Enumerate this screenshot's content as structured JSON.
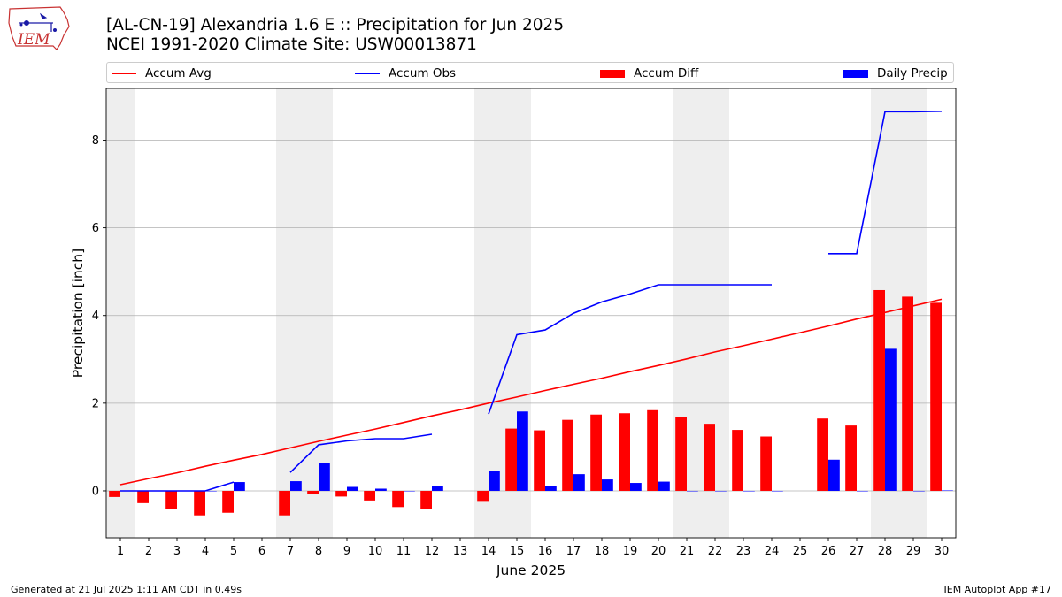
{
  "header": {
    "logo_text": "IEM",
    "title_line1": "[AL-CN-19] Alexandria 1.6 E :: Precipitation for Jun 2025",
    "title_line2": "NCEI 1991-2020 Climate Site: USW00013871"
  },
  "footer": {
    "left": "Generated at 21 Jul 2025 1:11 AM CDT in 0.49s",
    "right": "IEM Autoplot App #17"
  },
  "chart_data": {
    "type": "bar",
    "xlabel": "June 2025",
    "ylabel": "Precipitation [inch]",
    "ylim": [
      -1.07,
      9.18
    ],
    "yticks": [
      0,
      2,
      4,
      6,
      8
    ],
    "grid": "horizontal",
    "legend_position": "top",
    "weekend_shading": [
      [
        1,
        1
      ],
      [
        7,
        8
      ],
      [
        14,
        15
      ],
      [
        21,
        22
      ],
      [
        28,
        29
      ]
    ],
    "categories": [
      1,
      2,
      3,
      4,
      5,
      6,
      7,
      8,
      9,
      10,
      11,
      12,
      13,
      14,
      15,
      16,
      17,
      18,
      19,
      20,
      21,
      22,
      23,
      24,
      25,
      26,
      27,
      28,
      29,
      30
    ],
    "series": [
      {
        "name": "Accum Avg",
        "kind": "line",
        "color": "#ff0000",
        "values": [
          0.14,
          0.28,
          0.41,
          0.56,
          0.7,
          0.83,
          0.98,
          1.13,
          1.27,
          1.41,
          1.56,
          1.71,
          1.85,
          2.0,
          2.14,
          2.29,
          2.43,
          2.57,
          2.72,
          2.86,
          3.01,
          3.17,
          3.31,
          3.46,
          3.61,
          3.76,
          3.92,
          4.07,
          4.22,
          4.37
        ]
      },
      {
        "name": "Accum Obs",
        "kind": "line",
        "color": "#0000ff",
        "values": [
          0.0,
          0.0,
          0.0,
          0.0,
          0.2,
          null,
          0.42,
          1.05,
          1.14,
          1.19,
          1.19,
          1.29,
          null,
          1.75,
          3.56,
          3.67,
          4.05,
          4.31,
          4.49,
          4.7,
          4.7,
          4.7,
          4.7,
          4.7,
          null,
          5.41,
          5.41,
          8.65,
          8.65,
          8.66
        ]
      },
      {
        "name": "Accum Diff",
        "kind": "bar",
        "color": "#ff0000",
        "values": [
          -0.14,
          -0.28,
          -0.41,
          -0.56,
          -0.5,
          null,
          -0.56,
          -0.08,
          -0.13,
          -0.22,
          -0.37,
          -0.42,
          null,
          -0.25,
          1.42,
          1.38,
          1.62,
          1.74,
          1.77,
          1.84,
          1.69,
          1.53,
          1.39,
          1.24,
          null,
          1.65,
          1.49,
          4.58,
          4.43,
          4.29
        ]
      },
      {
        "name": "Daily Precip",
        "kind": "bar",
        "color": "#0000ff",
        "values": [
          0.0,
          0.0,
          0.0,
          0.0,
          0.2,
          null,
          0.22,
          0.63,
          0.09,
          0.05,
          0.0,
          0.1,
          null,
          0.46,
          1.81,
          0.11,
          0.38,
          0.26,
          0.18,
          0.21,
          0.0,
          0.0,
          0.0,
          0.0,
          null,
          0.71,
          0.0,
          3.24,
          0.0,
          0.01
        ]
      }
    ]
  }
}
